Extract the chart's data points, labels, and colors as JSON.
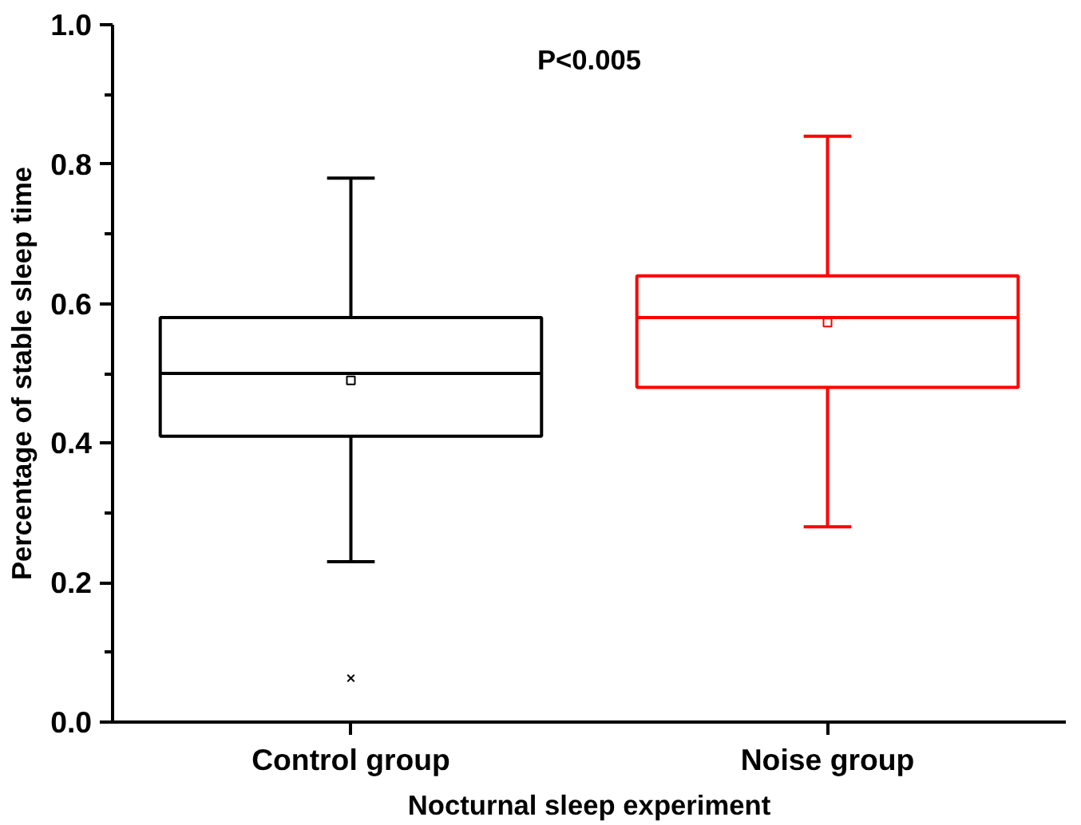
{
  "chart_data": {
    "type": "box",
    "xlabel": "Nocturnal sleep experiment",
    "ylabel": "Percentage of stable sleep time",
    "annotations": [
      "P<0.005"
    ],
    "categories": [
      "Control group",
      "Noise group"
    ],
    "colors": [
      "#000000",
      "#ff0000"
    ],
    "boxes": [
      {
        "low": 0.23,
        "q1": 0.41,
        "median": 0.5,
        "q3": 0.58,
        "high": 0.78,
        "mean": 0.49,
        "outliers": [
          0.063
        ]
      },
      {
        "low": 0.28,
        "q1": 0.48,
        "median": 0.58,
        "q3": 0.64,
        "high": 0.84,
        "mean": 0.573
      }
    ],
    "ylim": [
      0,
      1.0
    ],
    "yticks": [
      {
        "value": 0,
        "label": "0.0"
      },
      {
        "value": 0.1,
        "label": null
      },
      0.2,
      {
        "value": 0.3,
        "label": null
      },
      0.4,
      {
        "value": 0.5,
        "label": null
      },
      0.6,
      {
        "value": 0.7,
        "label": null
      },
      0.8,
      {
        "value": 0.9,
        "label": null
      },
      {
        "value": 1.0,
        "label": "1.0"
      }
    ]
  }
}
